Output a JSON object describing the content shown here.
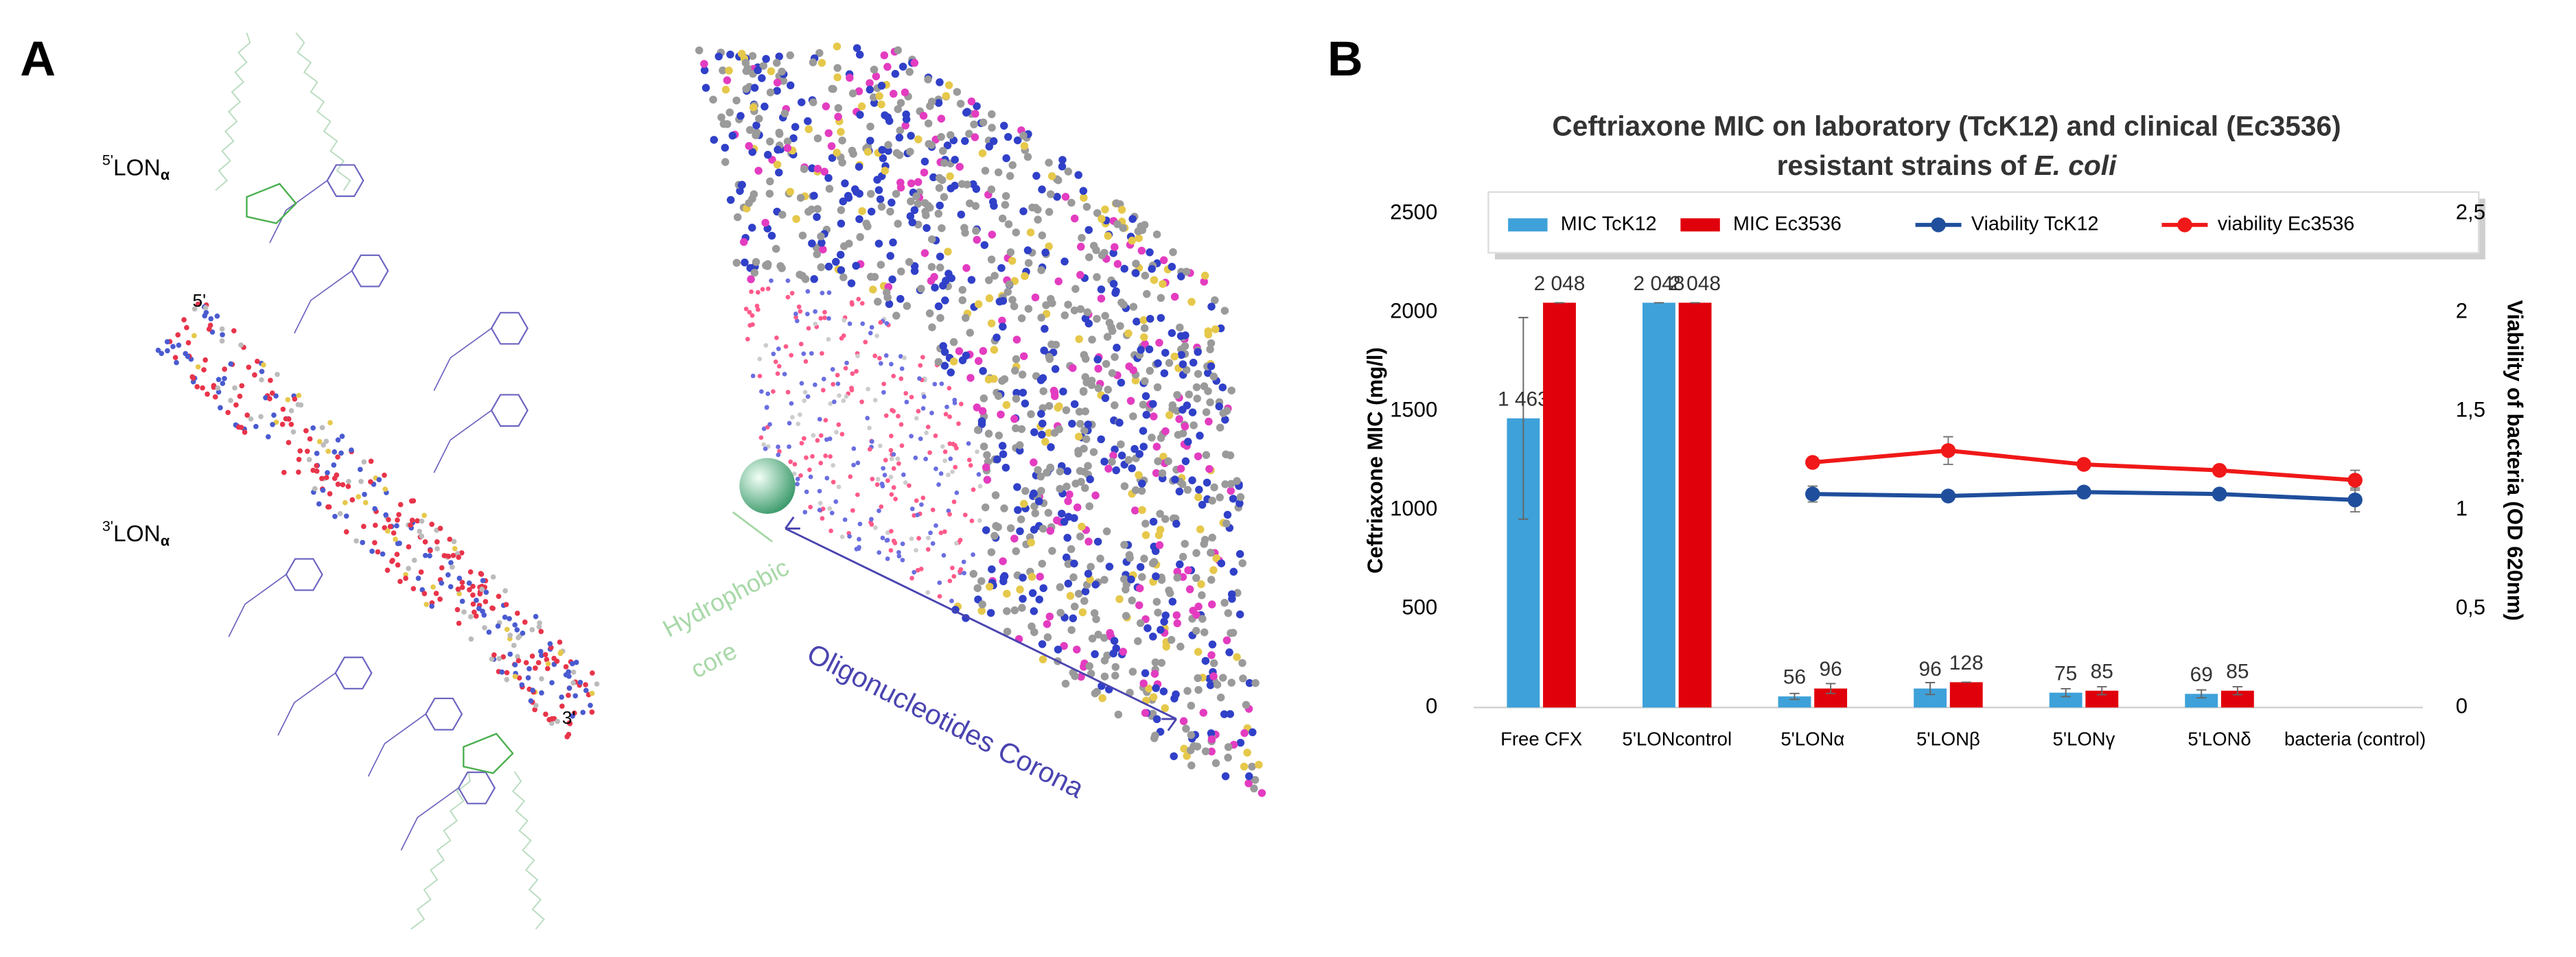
{
  "panel_a": {
    "label": "A",
    "lon_top": {
      "prime": "5'",
      "name": "LON",
      "sub": "α"
    },
    "lon_bottom": {
      "prime": "3'",
      "name": "LON",
      "sub": "α"
    },
    "end_5": "5'",
    "end_3": "3'",
    "core": [
      "Hydrophobic",
      "core"
    ],
    "corona": "Oligonucleotides Corona"
  },
  "panel_b_label": "B",
  "chart_data": {
    "type": "bar",
    "title": [
      "Ceftriaxone MIC on laboratory (TcK12) and clinical (Ec3536)",
      "resistant strains of "
    ],
    "title_italic": "E. coli",
    "y_label": "Ceftriaxone MIC (mg/l)",
    "y2_label": "Viability of bacteria (OD 620nm)",
    "categories": [
      "Free CFX",
      "5'LONcontrol",
      "5'LONα",
      "5'LONβ",
      "5'LONγ",
      "5'LONδ",
      "bacteria (control)"
    ],
    "ylim": [
      0,
      2500
    ],
    "yticks": [
      0,
      500,
      1000,
      1500,
      2000,
      2500
    ],
    "y2lim": [
      0,
      2.5
    ],
    "y2ticks": [
      0,
      {
        "value": 0.5,
        "label": "0,5"
      },
      1,
      {
        "value": 1.5,
        "label": "1,5"
      },
      2,
      {
        "value": 2.5,
        "label": "2,5"
      }
    ],
    "legend": "top",
    "series": [
      {
        "name": "MIC TcK12",
        "color": "#3ea1d9",
        "values": [
          1463,
          2048,
          56,
          96,
          75,
          69,
          null
        ],
        "value_labels": [
          "1 463",
          "2 048",
          "56",
          "96",
          "75",
          "69",
          null
        ],
        "errors": [
          510,
          0,
          15,
          30,
          20,
          20,
          null
        ]
      },
      {
        "name": "MIC Ec3536",
        "color": "#e0000b",
        "values": [
          2048,
          2048,
          96,
          128,
          85,
          85,
          null
        ],
        "value_labels": [
          "2 048",
          "2 048",
          "96",
          "128",
          "85",
          "85",
          null
        ],
        "errors": [
          0,
          0,
          25,
          0,
          20,
          20,
          null
        ]
      },
      {
        "name": "Viability TcK12",
        "color": "#1f4e9c",
        "axis": "y2",
        "values": [
          null,
          null,
          1.08,
          1.07,
          1.09,
          1.08,
          1.05
        ],
        "errors": [
          null,
          null,
          0.04,
          0.02,
          0.02,
          0.02,
          0.06
        ]
      },
      {
        "name": "viability Ec3536",
        "color": "#f01818",
        "axis": "y2",
        "values": [
          null,
          null,
          1.24,
          1.3,
          1.23,
          1.2,
          1.15
        ],
        "errors": [
          null,
          null,
          0.02,
          0.07,
          0.02,
          0.02,
          0.05
        ]
      }
    ]
  }
}
